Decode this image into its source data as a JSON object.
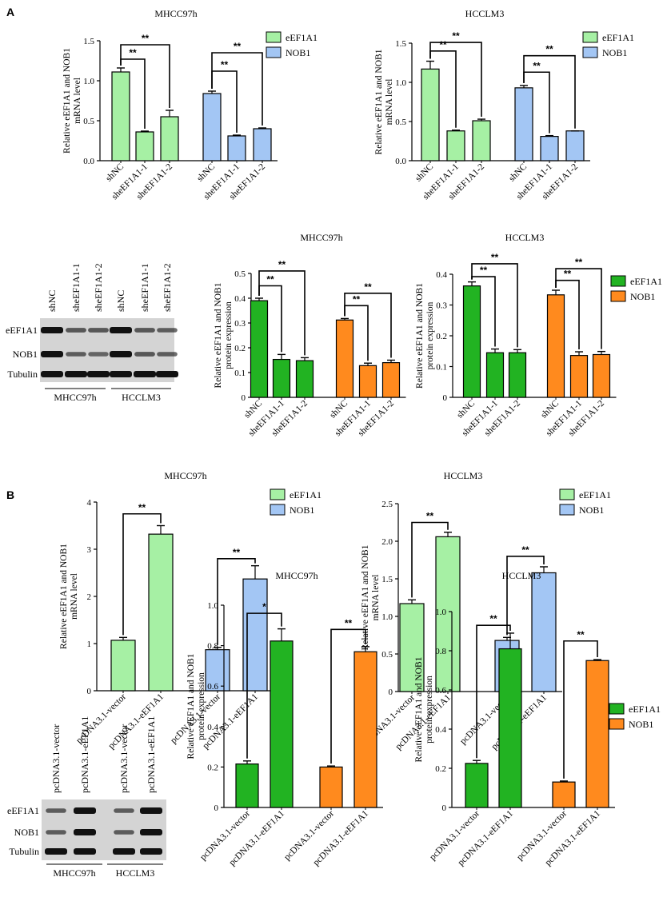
{
  "panel_labels": {
    "a": "A",
    "b": "B"
  },
  "colors": {
    "light_green": "#a6f0a4",
    "light_blue": "#a3c6f4",
    "dark_green": "#22b322",
    "orange": "#ff8a1e",
    "blot_bg": "#d4d4d4",
    "band": "#111111"
  },
  "blots": [
    {
      "lanes": [
        "shNC",
        "sheEF1A1-1",
        "sheEF1A1-2",
        "shNC",
        "sheEF1A1-1",
        "sheEF1A1-2"
      ],
      "rows": [
        "eEF1A1",
        "NOB1",
        "Tubulin"
      ],
      "groups": [
        "MHCC97h",
        "HCCLM3"
      ],
      "intensity": [
        [
          1,
          0.45,
          0.45,
          1,
          0.45,
          0.4
        ],
        [
          1,
          0.4,
          0.35,
          1,
          0.45,
          0.4
        ],
        [
          1,
          1,
          1,
          1,
          1,
          1
        ]
      ]
    },
    {
      "lanes": [
        "pcDNA3.1-vector",
        "pcDNA3.1-eEF1A1",
        "pcDNA3.1-vector",
        "pcDNA3.1-eEF1A1"
      ],
      "rows": [
        "eEF1A1",
        "NOB1",
        "Tubulin"
      ],
      "groups": [
        "MHCC97h",
        "HCCLM3"
      ],
      "intensity": [
        [
          0.4,
          1,
          0.4,
          1
        ],
        [
          0.4,
          1,
          0.4,
          1
        ],
        [
          1,
          1,
          1,
          1
        ]
      ]
    }
  ],
  "chart_data": [
    {
      "type": "bar",
      "title": "MHCC97h",
      "ylabel": [
        "Relative eEF1A1 and NOB1",
        "mRNA level"
      ],
      "ylim": [
        0,
        1.5
      ],
      "yticks": [
        "0.0",
        "0.5",
        "1.0",
        "1.5"
      ],
      "categories": [
        "shNC",
        "sheEF1A1-1",
        "sheEF1A1-2",
        "shNC",
        "sheEF1A1-1",
        "sheEF1A1-2"
      ],
      "values": [
        1.11,
        0.36,
        0.55,
        0.84,
        0.31,
        0.4
      ],
      "errors": [
        0.05,
        0.01,
        0.08,
        0.03,
        0.01,
        0.01
      ],
      "colors": [
        "light_green",
        "light_green",
        "light_green",
        "light_blue",
        "light_blue",
        "light_blue"
      ],
      "legend": [
        {
          "name": "eEF1A1",
          "color": "light_green"
        },
        {
          "name": "NOB1",
          "color": "light_blue"
        }
      ],
      "significance": [
        {
          "from": 0,
          "to": 1,
          "label": "**",
          "level": 1.27
        },
        {
          "from": 0,
          "to": 2,
          "label": "**",
          "level": 1.45
        },
        {
          "from": 3,
          "to": 4,
          "label": "**",
          "level": 1.12
        },
        {
          "from": 3,
          "to": 5,
          "label": "**",
          "level": 1.35
        }
      ]
    },
    {
      "type": "bar",
      "title": "HCCLM3",
      "ylabel": [
        "Relative eEF1A1 and NOB1",
        "mRNA level"
      ],
      "ylim": [
        0,
        1.5
      ],
      "yticks": [
        "0.0",
        "0.5",
        "1.0",
        "1.5"
      ],
      "categories": [
        "shNC",
        "sheEF1A1-1",
        "sheEF1A1-2",
        "shNC",
        "sheEF1A1-1",
        "sheEF1A1-2"
      ],
      "values": [
        1.17,
        0.38,
        0.51,
        0.93,
        0.31,
        0.38
      ],
      "errors": [
        0.1,
        0.01,
        0.02,
        0.03,
        0.01,
        0.0
      ],
      "colors": [
        "light_green",
        "light_green",
        "light_green",
        "light_blue",
        "light_blue",
        "light_blue"
      ],
      "legend": [
        {
          "name": "eEF1A1",
          "color": "light_green"
        },
        {
          "name": "NOB1",
          "color": "light_blue"
        }
      ],
      "significance": [
        {
          "from": 0,
          "to": 1,
          "label": "**",
          "level": 1.4
        },
        {
          "from": 0,
          "to": 2,
          "label": "**",
          "level": 1.51
        },
        {
          "from": 3,
          "to": 4,
          "label": "**",
          "level": 1.13
        },
        {
          "from": 3,
          "to": 5,
          "label": "**",
          "level": 1.34
        }
      ]
    },
    {
      "type": "bar",
      "title": "MHCC97h",
      "ylabel": [
        "Relative eEF1A1 and NOB1",
        "protein expression"
      ],
      "ylim": [
        0,
        0.5
      ],
      "yticks": [
        "0",
        "0.1",
        "0.2",
        "0.3",
        "0.4",
        "0.5"
      ],
      "categories": [
        "shNC",
        "sheEF1A1-1",
        "sheEF1A1-2",
        "shNC",
        "sheEF1A1-1",
        "sheEF1A1-2"
      ],
      "values": [
        0.39,
        0.153,
        0.148,
        0.312,
        0.128,
        0.14
      ],
      "errors": [
        0.01,
        0.02,
        0.012,
        0.006,
        0.01,
        0.01
      ],
      "colors": [
        "dark_green",
        "dark_green",
        "dark_green",
        "orange",
        "orange",
        "orange"
      ],
      "legend": [],
      "significance": [
        {
          "from": 0,
          "to": 1,
          "label": "**",
          "level": 0.45
        },
        {
          "from": 0,
          "to": 2,
          "label": "**",
          "level": 0.51
        },
        {
          "from": 3,
          "to": 4,
          "label": "**",
          "level": 0.37
        },
        {
          "from": 3,
          "to": 5,
          "label": "**",
          "level": 0.42
        }
      ]
    },
    {
      "type": "bar",
      "title": "HCCLM3",
      "ylabel": [
        "Relative eEF1A1 and NOB1",
        "protein expression"
      ],
      "ylim": [
        0,
        0.4
      ],
      "yticks": [
        "0",
        "0.1",
        "0.2",
        "0.3",
        "0.4"
      ],
      "categories": [
        "shNC",
        "sheEF1A1-1",
        "sheEF1A1-2",
        "shNC",
        "sheEF1A1-1",
        "sheEF1A1-2"
      ],
      "values": [
        0.362,
        0.145,
        0.145,
        0.333,
        0.136,
        0.139
      ],
      "errors": [
        0.013,
        0.012,
        0.01,
        0.015,
        0.012,
        0.01
      ],
      "colors": [
        "dark_green",
        "dark_green",
        "dark_green",
        "orange",
        "orange",
        "orange"
      ],
      "legend": [
        {
          "name": "eEF1A1",
          "color": "dark_green"
        },
        {
          "name": "NOB1",
          "color": "orange"
        }
      ],
      "significance": [
        {
          "from": 0,
          "to": 1,
          "label": "**",
          "level": 0.392
        },
        {
          "from": 0,
          "to": 2,
          "label": "**",
          "level": 0.434
        },
        {
          "from": 3,
          "to": 4,
          "label": "**",
          "level": 0.38
        },
        {
          "from": 3,
          "to": 5,
          "label": "**",
          "level": 0.418
        }
      ]
    },
    {
      "type": "bar",
      "title": "MHCC97h",
      "ylabel": [
        "Relative eEF1A1 and NOB1",
        "mRNA level"
      ],
      "ylim": [
        0,
        4
      ],
      "yticks": [
        "0",
        "1",
        "2",
        "3",
        "4"
      ],
      "categories": [
        "pcDNA3.1-vector",
        "pcDNA3.1-eEF1A1",
        "pcDNA3.1-vector",
        "pcDNA3.1-eEF1A1"
      ],
      "values": [
        1.07,
        3.32,
        0.87,
        2.37
      ],
      "errors": [
        0.06,
        0.18,
        0.05,
        0.28
      ],
      "colors": [
        "light_green",
        "light_green",
        "light_blue",
        "light_blue"
      ],
      "legend": [
        {
          "name": "eEF1A1",
          "color": "light_green"
        },
        {
          "name": "NOB1",
          "color": "light_blue"
        }
      ],
      "significance": [
        {
          "from": 0,
          "to": 1,
          "label": "**",
          "level": 3.75
        },
        {
          "from": 2,
          "to": 3,
          "label": "**",
          "level": 2.8
        }
      ]
    },
    {
      "type": "bar",
      "title": "HCCLM3",
      "ylabel": [
        "Relative eEF1A1 and NOB1",
        "mRNA level"
      ],
      "ylim": [
        0,
        2.5
      ],
      "yticks": [
        "0",
        "0.5",
        "1.0",
        "1.5",
        "2.0",
        "2.5"
      ],
      "categories": [
        "pcDNA3.1-vector",
        "pcDNA3.1-eEF1A1",
        "pcDNA3.1-vector",
        "pcDNA3.1-eEF1A1"
      ],
      "values": [
        1.17,
        2.06,
        0.68,
        1.58
      ],
      "errors": [
        0.05,
        0.06,
        0.04,
        0.08
      ],
      "colors": [
        "light_green",
        "light_green",
        "light_blue",
        "light_blue"
      ],
      "legend": [
        {
          "name": "eEF1A1",
          "color": "light_green"
        },
        {
          "name": "NOB1",
          "color": "light_blue"
        }
      ],
      "significance": [
        {
          "from": 0,
          "to": 1,
          "label": "**",
          "level": 2.25
        },
        {
          "from": 2,
          "to": 3,
          "label": "**",
          "level": 1.8
        }
      ]
    },
    {
      "type": "bar",
      "title": "MHCC97h",
      "ylabel": [
        "Relative eEF1A1 and NOB1",
        "protein expression"
      ],
      "ylim": [
        0,
        1.0
      ],
      "yticks": [
        "0",
        "0.2",
        "0.4",
        "0.6",
        "0.8",
        "1.0"
      ],
      "categories": [
        "pcDNA3.1-vector",
        "pcDNA3.1-eEF1A1",
        "pcDNA3.1-vector",
        "pcDNA3.1-eEF1A1"
      ],
      "values": [
        0.215,
        0.823,
        0.2,
        0.77
      ],
      "errors": [
        0.015,
        0.06,
        0.005,
        0.025
      ],
      "colors": [
        "dark_green",
        "dark_green",
        "orange",
        "orange"
      ],
      "legend": [],
      "significance": [
        {
          "from": 0,
          "to": 1,
          "label": "*",
          "level": 0.96
        },
        {
          "from": 2,
          "to": 3,
          "label": "**",
          "level": 0.88
        }
      ]
    },
    {
      "type": "bar",
      "title": "HCCLM3",
      "ylabel": [
        "Relative eEF1A1 and NOB1",
        "protein expression"
      ],
      "ylim": [
        0,
        1.0
      ],
      "yticks": [
        "0",
        "0.2",
        "0.4",
        "0.6",
        "0.8",
        "1.0"
      ],
      "categories": [
        "pcDNA3.1-vector",
        "pcDNA3.1-eEF1A1",
        "pcDNA3.1-vector",
        "pcDNA3.1-eEF1A1"
      ],
      "values": [
        0.225,
        0.81,
        0.13,
        0.75
      ],
      "errors": [
        0.015,
        0.08,
        0.005,
        0.005
      ],
      "colors": [
        "dark_green",
        "dark_green",
        "orange",
        "orange"
      ],
      "legend": [
        {
          "name": "eEF1A1",
          "color": "dark_green"
        },
        {
          "name": "NOB1",
          "color": "orange"
        }
      ],
      "significance": [
        {
          "from": 0,
          "to": 1,
          "label": "**",
          "level": 0.93
        },
        {
          "from": 2,
          "to": 3,
          "label": "**",
          "level": 0.85
        }
      ]
    }
  ]
}
